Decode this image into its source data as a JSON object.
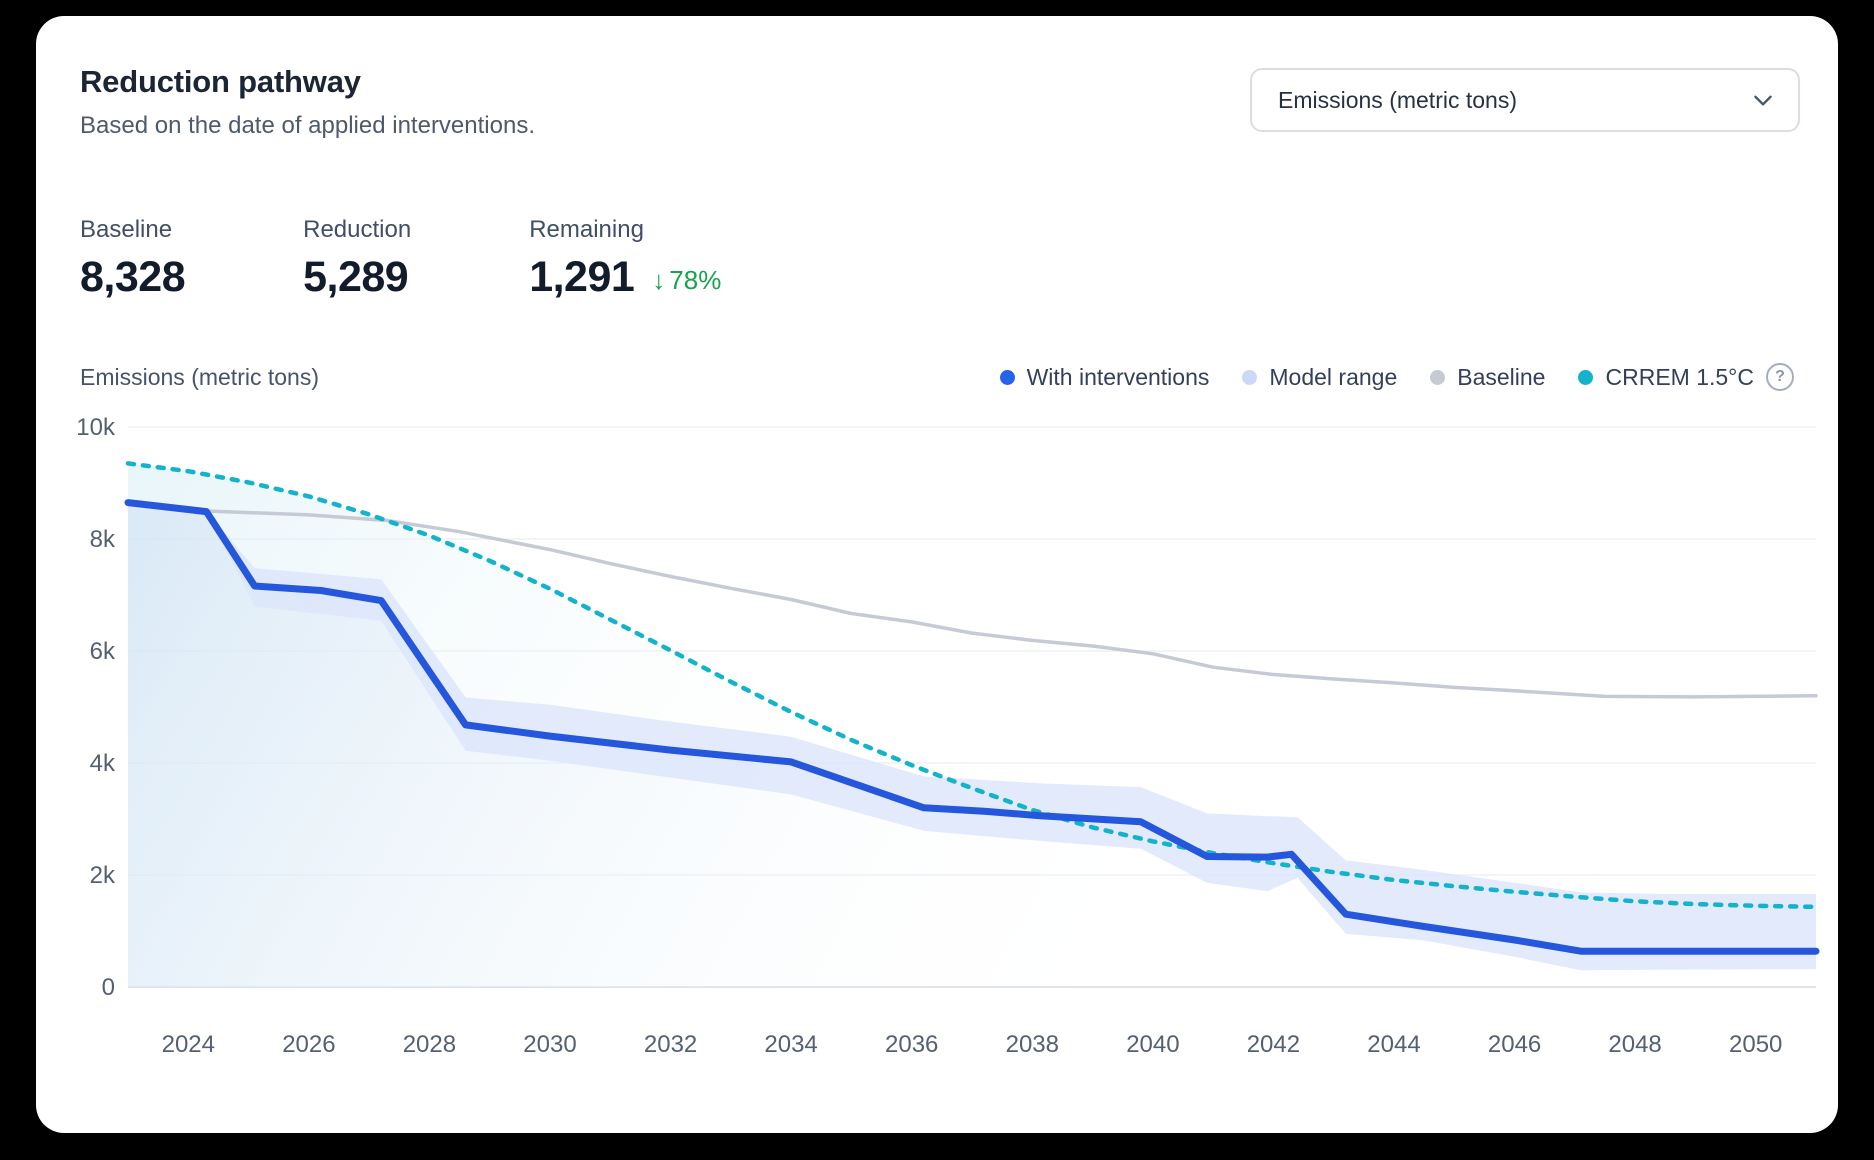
{
  "header": {
    "title": "Reduction pathway",
    "subtitle": "Based on the date of applied interventions."
  },
  "unit_select": {
    "value": "Emissions (metric tons)"
  },
  "stats": [
    {
      "label": "Baseline",
      "value": "8,328"
    },
    {
      "label": "Reduction",
      "value": "5,289"
    },
    {
      "label": "Remaining",
      "value": "1,291",
      "delta_arrow": "↓",
      "delta": "78%"
    }
  ],
  "legend": {
    "items": [
      {
        "label": "With interventions",
        "color": "#2563eb"
      },
      {
        "label": "Model range",
        "color": "#ccd8f8"
      },
      {
        "label": "Baseline",
        "color": "#c5cad4"
      },
      {
        "label": "CRREM 1.5°C",
        "color": "#12b3cb"
      }
    ],
    "help_label": "?"
  },
  "chart_data": {
    "type": "line",
    "title": "",
    "xlabel": "",
    "ylabel": "Emissions (metric tons)",
    "x_range": [
      2023,
      2051
    ],
    "y_range": [
      0,
      10000
    ],
    "grid": true,
    "legend_position": "top-right",
    "x_ticks": [
      2024,
      2026,
      2028,
      2030,
      2032,
      2034,
      2036,
      2038,
      2040,
      2042,
      2044,
      2046,
      2048,
      2050
    ],
    "y_ticks": [
      {
        "v": 0,
        "label": "0"
      },
      {
        "v": 2000,
        "label": "2k"
      },
      {
        "v": 4000,
        "label": "4k"
      },
      {
        "v": 6000,
        "label": "6k"
      },
      {
        "v": 8000,
        "label": "8k"
      },
      {
        "v": 10000,
        "label": "10k"
      }
    ],
    "series": [
      {
        "name": "CRREM 1.5°C",
        "type": "line",
        "color": "#12b3cb",
        "width": 4.5,
        "dash": "6 9",
        "area": "cyan",
        "points": [
          [
            2023,
            9350
          ],
          [
            2024,
            9210
          ],
          [
            2025,
            9010
          ],
          [
            2026,
            8760
          ],
          [
            2027,
            8440
          ],
          [
            2028,
            8060
          ],
          [
            2029,
            7610
          ],
          [
            2030,
            7110
          ],
          [
            2031,
            6560
          ],
          [
            2032,
            6010
          ],
          [
            2033,
            5450
          ],
          [
            2034,
            4910
          ],
          [
            2035,
            4410
          ],
          [
            2036,
            3960
          ],
          [
            2037,
            3550
          ],
          [
            2038,
            3160
          ],
          [
            2039,
            2850
          ],
          [
            2040,
            2600
          ],
          [
            2041,
            2390
          ],
          [
            2042,
            2210
          ],
          [
            2043,
            2050
          ],
          [
            2044,
            1910
          ],
          [
            2045,
            1800
          ],
          [
            2046,
            1700
          ],
          [
            2047,
            1610
          ],
          [
            2048,
            1530
          ],
          [
            2049,
            1480
          ],
          [
            2050,
            1450
          ],
          [
            2051,
            1430
          ]
        ]
      },
      {
        "name": "With interventions",
        "type": "line",
        "color": "#2457db",
        "width": 7,
        "area": "blue",
        "points": [
          [
            2023,
            8650
          ],
          [
            2024.3,
            8490
          ],
          [
            2025.1,
            7160
          ],
          [
            2026.2,
            7080
          ],
          [
            2027.2,
            6900
          ],
          [
            2028.6,
            4680
          ],
          [
            2030,
            4480
          ],
          [
            2032,
            4230
          ],
          [
            2034,
            4020
          ],
          [
            2036.2,
            3200
          ],
          [
            2037.2,
            3140
          ],
          [
            2038.1,
            3060
          ],
          [
            2039.8,
            2950
          ],
          [
            2040.9,
            2330
          ],
          [
            2041.9,
            2320
          ],
          [
            2042.3,
            2370
          ],
          [
            2043.2,
            1300
          ],
          [
            2044.5,
            1080
          ],
          [
            2046,
            840
          ],
          [
            2047.1,
            640
          ],
          [
            2051,
            640
          ]
        ]
      },
      {
        "name": "Model range",
        "type": "band",
        "color": "#dde6fb",
        "opacity": 0.85,
        "points": [
          [
            2024.3,
            8490,
            8490
          ],
          [
            2025.1,
            6790,
            7480
          ],
          [
            2027.2,
            6540,
            7280
          ],
          [
            2028.6,
            4220,
            5170
          ],
          [
            2030,
            4040,
            5040
          ],
          [
            2032,
            3740,
            4740
          ],
          [
            2034,
            3440,
            4470
          ],
          [
            2036.2,
            2790,
            3760
          ],
          [
            2038.1,
            2610,
            3640
          ],
          [
            2039.8,
            2470,
            3570
          ],
          [
            2040.9,
            1860,
            3100
          ],
          [
            2041.9,
            1710,
            3050
          ],
          [
            2042.4,
            1950,
            3030
          ],
          [
            2043.2,
            950,
            2260
          ],
          [
            2044.5,
            830,
            2090
          ],
          [
            2046,
            540,
            1860
          ],
          [
            2047.1,
            300,
            1690
          ],
          [
            2048.5,
            310,
            1660
          ],
          [
            2051,
            320,
            1660
          ]
        ]
      },
      {
        "name": "Baseline",
        "type": "line",
        "color": "#c5cad4",
        "width": 3.5,
        "points": [
          [
            2024.3,
            8500
          ],
          [
            2026,
            8430
          ],
          [
            2027.3,
            8330
          ],
          [
            2028.5,
            8130
          ],
          [
            2030,
            7810
          ],
          [
            2031,
            7560
          ],
          [
            2032,
            7330
          ],
          [
            2033,
            7120
          ],
          [
            2034,
            6920
          ],
          [
            2035,
            6670
          ],
          [
            2036,
            6520
          ],
          [
            2037,
            6320
          ],
          [
            2038,
            6190
          ],
          [
            2039,
            6090
          ],
          [
            2040,
            5950
          ],
          [
            2041,
            5710
          ],
          [
            2042,
            5580
          ],
          [
            2043,
            5500
          ],
          [
            2044,
            5430
          ],
          [
            2045,
            5350
          ],
          [
            2046,
            5290
          ],
          [
            2047.5,
            5190
          ],
          [
            2049,
            5180
          ],
          [
            2051,
            5200
          ]
        ]
      }
    ],
    "colors": {
      "grid": "#eef1f5",
      "axis": "#e0e4ea",
      "tick_text": "#556072"
    }
  }
}
